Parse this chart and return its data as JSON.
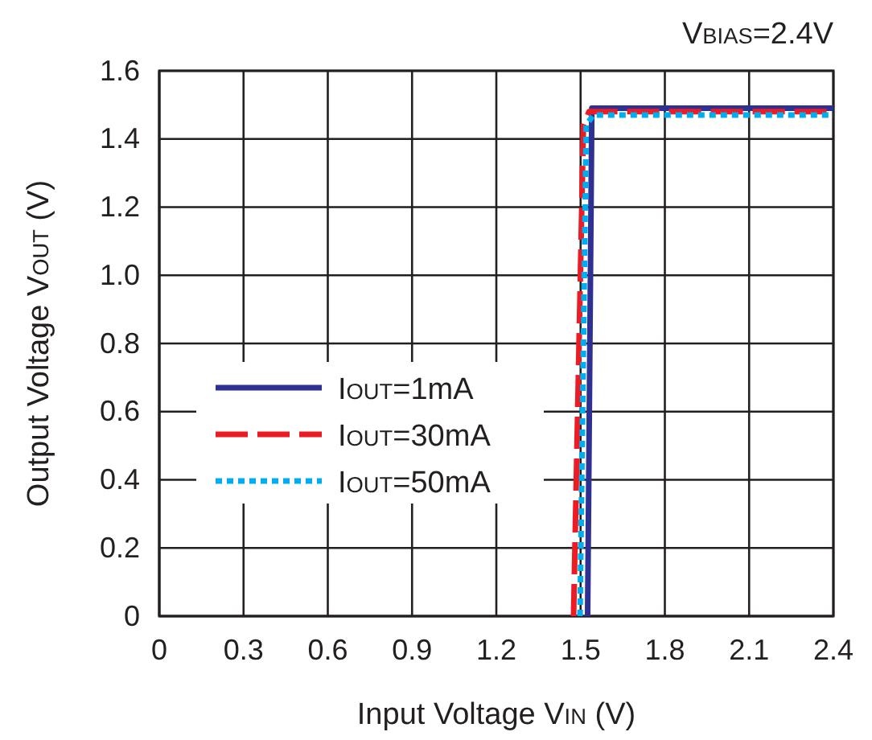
{
  "chart_data": {
    "type": "line",
    "xlabel": "Input Voltage V$_{IN}$ (V)",
    "ylabel": "Output Voltage V$_{OUT}$ (V)",
    "annotations": [
      "V$_{BIAS}$=2.4V"
    ],
    "xlim": [
      0,
      2.4
    ],
    "xticks": [
      0,
      0.3,
      0.6,
      0.9,
      1.2,
      1.5,
      1.8,
      2.1,
      2.4
    ],
    "ylim": [
      0,
      1.6
    ],
    "yticks": [
      0,
      0.2,
      0.4,
      0.6,
      0.8,
      {
        "value": 1.0,
        "label": "1.0"
      },
      1.2,
      1.4,
      1.6
    ],
    "grid": true,
    "legend": "left",
    "series": [
      {
        "name": "I$_{OUT}$=1mA",
        "color": "#2e3192",
        "line_style": "solid",
        "x": [
          1.525,
          1.54,
          2.4
        ],
        "values": [
          0,
          1.49,
          1.49
        ]
      },
      {
        "name": "I$_{OUT}$=30mA",
        "color": "#ed1c24",
        "line_style": "dashed",
        "x": [
          1.475,
          1.51,
          1.53,
          2.4
        ],
        "values": [
          0,
          1.44,
          1.48,
          1.48
        ]
      },
      {
        "name": "I$_{OUT}$=50mA",
        "color": "#00aeef",
        "line_style": "dotted",
        "x": [
          1.498,
          1.52,
          1.545,
          2.4
        ],
        "values": [
          0,
          1.44,
          1.47,
          1.47
        ]
      }
    ]
  }
}
